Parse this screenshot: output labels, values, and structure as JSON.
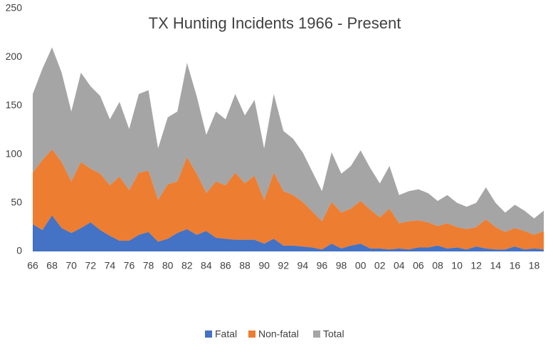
{
  "chart_data": {
    "type": "stacked_area",
    "title": "TX Hunting Incidents 1966 - Present",
    "categories": [
      "66",
      null,
      "68",
      null,
      "70",
      null,
      "72",
      null,
      "74",
      null,
      "76",
      null,
      "78",
      null,
      "80",
      null,
      "82",
      null,
      "84",
      null,
      "86",
      null,
      "88",
      null,
      "90",
      null,
      "92",
      null,
      "94",
      null,
      "96",
      null,
      "98",
      null,
      "00",
      null,
      "02",
      null,
      "04",
      null,
      "06",
      null,
      "08",
      null,
      "10",
      null,
      "12",
      null,
      "14",
      null,
      "16",
      null,
      "18",
      null
    ],
    "series": [
      {
        "name": "Fatal",
        "color": "#4472c4",
        "values": [
          28,
          22,
          37,
          24,
          19,
          24,
          30,
          22,
          16,
          11,
          11,
          17,
          20,
          10,
          13,
          19,
          23,
          17,
          21,
          14,
          13,
          12,
          12,
          12,
          8,
          13,
          6,
          6,
          5,
          4,
          2,
          8,
          3,
          6,
          8,
          3,
          3,
          2,
          3,
          2,
          4,
          4,
          6,
          3,
          4,
          2,
          5,
          3,
          2,
          2,
          5,
          2,
          3,
          2
        ]
      },
      {
        "name": "Non-fatal",
        "color": "#ed7d31",
        "values": [
          53,
          72,
          68,
          68,
          53,
          68,
          55,
          58,
          52,
          66,
          52,
          64,
          63,
          43,
          56,
          53,
          74,
          63,
          39,
          58,
          55,
          69,
          58,
          66,
          45,
          68,
          56,
          52,
          46,
          37,
          29,
          43,
          37,
          38,
          44,
          40,
          32,
          42,
          26,
          29,
          28,
          26,
          20,
          26,
          21,
          21,
          20,
          30,
          23,
          18,
          19,
          19,
          14,
          19
        ]
      },
      {
        "name": "Total",
        "color": "#a5a5a5",
        "values": [
          81,
          94,
          105,
          92,
          72,
          92,
          85,
          80,
          68,
          77,
          63,
          81,
          83,
          53,
          69,
          72,
          97,
          80,
          60,
          72,
          68,
          81,
          70,
          78,
          53,
          81,
          62,
          58,
          51,
          41,
          31,
          51,
          40,
          44,
          52,
          43,
          35,
          44,
          29,
          31,
          32,
          30,
          26,
          29,
          25,
          23,
          25,
          33,
          25,
          20,
          24,
          21,
          17,
          21
        ]
      }
    ],
    "ylim": [
      0,
      250
    ],
    "yticks": [
      0,
      50,
      100,
      150,
      200,
      250
    ],
    "grid": false,
    "legend": "bottom"
  }
}
